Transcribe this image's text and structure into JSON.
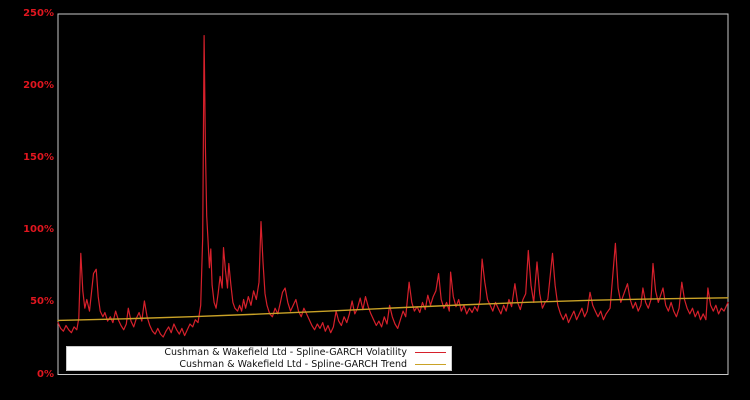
{
  "colors": {
    "background": "#000000",
    "axis_spine": "#c8c8c8",
    "tick_label": "#e0161f",
    "volatility_line": "#d6202b",
    "trend_line": "#c9a227",
    "legend_background": "#ffffff",
    "legend_border": "#c9c9c9",
    "legend_text": "#111111"
  },
  "legend": {
    "items": [
      {
        "label": "Cushman & Wakefield Ltd - Spline-GARCH Volatility",
        "color": "#d6202b"
      },
      {
        "label": "Cushman & Wakefield Ltd - Spline-GARCH Trend",
        "color": "#c9a227"
      }
    ]
  },
  "chart_data": {
    "type": "line",
    "title": "",
    "xlabel": "",
    "ylabel": "",
    "ylim": [
      0,
      250
    ],
    "grid": false,
    "legend_position": "bottom-center",
    "x_units": "percent-of-axis (no x tick labels shown)",
    "y_ticks": [
      {
        "label": "0%",
        "value": 0
      },
      {
        "label": "50%",
        "value": 50
      },
      {
        "label": "100%",
        "value": 100
      },
      {
        "label": "150%",
        "value": 150
      },
      {
        "label": "200%",
        "value": 200
      },
      {
        "label": "250%",
        "value": 250
      }
    ],
    "series": [
      {
        "name": "Cushman & Wakefield Ltd - Spline-GARCH Volatility",
        "color": "#d6202b",
        "width": 1.2,
        "points": [
          [
            0,
            36
          ],
          [
            0.4,
            32
          ],
          [
            0.8,
            30
          ],
          [
            1.2,
            34
          ],
          [
            1.6,
            31
          ],
          [
            2,
            29
          ],
          [
            2.4,
            33
          ],
          [
            2.8,
            31
          ],
          [
            3.1,
            39
          ],
          [
            3.4,
            84
          ],
          [
            3.7,
            58
          ],
          [
            4,
            46
          ],
          [
            4.3,
            52
          ],
          [
            4.7,
            44
          ],
          [
            5,
            57
          ],
          [
            5.3,
            70
          ],
          [
            5.7,
            73
          ],
          [
            6,
            54
          ],
          [
            6.3,
            44
          ],
          [
            6.7,
            40
          ],
          [
            7,
            43
          ],
          [
            7.4,
            37
          ],
          [
            7.8,
            40
          ],
          [
            8.2,
            36
          ],
          [
            8.6,
            44
          ],
          [
            9,
            38
          ],
          [
            9.4,
            34
          ],
          [
            9.8,
            31
          ],
          [
            10.2,
            35
          ],
          [
            10.5,
            46
          ],
          [
            10.9,
            37
          ],
          [
            11.3,
            33
          ],
          [
            11.7,
            39
          ],
          [
            12.1,
            43
          ],
          [
            12.5,
            37
          ],
          [
            12.9,
            51
          ],
          [
            13.3,
            40
          ],
          [
            13.7,
            34
          ],
          [
            14.1,
            30
          ],
          [
            14.5,
            28
          ],
          [
            14.9,
            32
          ],
          [
            15.3,
            28
          ],
          [
            15.7,
            26
          ],
          [
            16.1,
            30
          ],
          [
            16.5,
            33
          ],
          [
            16.9,
            29
          ],
          [
            17.3,
            35
          ],
          [
            17.7,
            31
          ],
          [
            18.1,
            28
          ],
          [
            18.5,
            32
          ],
          [
            18.9,
            27
          ],
          [
            19.3,
            31
          ],
          [
            19.7,
            35
          ],
          [
            20.1,
            33
          ],
          [
            20.5,
            38
          ],
          [
            20.9,
            36
          ],
          [
            21.3,
            48
          ],
          [
            21.6,
            95
          ],
          [
            21.8,
            235
          ],
          [
            22,
            158
          ],
          [
            22.2,
            110
          ],
          [
            22.4,
            92
          ],
          [
            22.6,
            74
          ],
          [
            22.8,
            87
          ],
          [
            23,
            62
          ],
          [
            23.3,
            50
          ],
          [
            23.6,
            46
          ],
          [
            23.9,
            56
          ],
          [
            24.2,
            68
          ],
          [
            24.5,
            60
          ],
          [
            24.7,
            88
          ],
          [
            25,
            72
          ],
          [
            25.3,
            60
          ],
          [
            25.5,
            77
          ],
          [
            25.8,
            62
          ],
          [
            26.1,
            50
          ],
          [
            26.4,
            46
          ],
          [
            26.8,
            44
          ],
          [
            27.1,
            48
          ],
          [
            27.4,
            44
          ],
          [
            27.7,
            52
          ],
          [
            28,
            46
          ],
          [
            28.4,
            54
          ],
          [
            28.8,
            48
          ],
          [
            29.2,
            58
          ],
          [
            29.6,
            52
          ],
          [
            30,
            64
          ],
          [
            30.3,
            106
          ],
          [
            30.6,
            78
          ],
          [
            30.9,
            56
          ],
          [
            31.2,
            48
          ],
          [
            31.6,
            42
          ],
          [
            32,
            40
          ],
          [
            32.4,
            46
          ],
          [
            32.8,
            42
          ],
          [
            33.2,
            50
          ],
          [
            33.5,
            57
          ],
          [
            33.9,
            60
          ],
          [
            34.3,
            50
          ],
          [
            34.7,
            44
          ],
          [
            35.1,
            48
          ],
          [
            35.5,
            52
          ],
          [
            35.9,
            44
          ],
          [
            36.3,
            40
          ],
          [
            36.7,
            46
          ],
          [
            37.1,
            42
          ],
          [
            37.5,
            38
          ],
          [
            37.9,
            34
          ],
          [
            38.3,
            31
          ],
          [
            38.7,
            35
          ],
          [
            39.1,
            32
          ],
          [
            39.5,
            36
          ],
          [
            39.9,
            30
          ],
          [
            40.3,
            34
          ],
          [
            40.7,
            29
          ],
          [
            41.1,
            33
          ],
          [
            41.5,
            44
          ],
          [
            41.9,
            37
          ],
          [
            42.3,
            34
          ],
          [
            42.7,
            40
          ],
          [
            43.1,
            36
          ],
          [
            43.5,
            42
          ],
          [
            43.9,
            51
          ],
          [
            44.3,
            42
          ],
          [
            44.7,
            46
          ],
          [
            45.1,
            53
          ],
          [
            45.5,
            45
          ],
          [
            45.9,
            54
          ],
          [
            46.3,
            47
          ],
          [
            46.7,
            42
          ],
          [
            47.1,
            38
          ],
          [
            47.5,
            34
          ],
          [
            47.9,
            37
          ],
          [
            48.3,
            33
          ],
          [
            48.7,
            40
          ],
          [
            49.1,
            35
          ],
          [
            49.5,
            48
          ],
          [
            49.9,
            40
          ],
          [
            50.3,
            35
          ],
          [
            50.7,
            32
          ],
          [
            51.1,
            38
          ],
          [
            51.5,
            44
          ],
          [
            51.9,
            40
          ],
          [
            52.4,
            64
          ],
          [
            52.8,
            50
          ],
          [
            53.2,
            44
          ],
          [
            53.6,
            47
          ],
          [
            54,
            43
          ],
          [
            54.4,
            50
          ],
          [
            54.8,
            45
          ],
          [
            55.2,
            55
          ],
          [
            55.6,
            48
          ],
          [
            56,
            54
          ],
          [
            56.4,
            58
          ],
          [
            56.8,
            70
          ],
          [
            57.2,
            52
          ],
          [
            57.6,
            46
          ],
          [
            58,
            50
          ],
          [
            58.4,
            44
          ],
          [
            58.6,
            71
          ],
          [
            59,
            54
          ],
          [
            59.4,
            47
          ],
          [
            59.8,
            52
          ],
          [
            60.2,
            44
          ],
          [
            60.6,
            48
          ],
          [
            61,
            42
          ],
          [
            61.4,
            46
          ],
          [
            61.8,
            43
          ],
          [
            62.2,
            47
          ],
          [
            62.6,
            44
          ],
          [
            63,
            52
          ],
          [
            63.3,
            80
          ],
          [
            63.7,
            64
          ],
          [
            64.1,
            52
          ],
          [
            64.5,
            48
          ],
          [
            64.9,
            44
          ],
          [
            65.3,
            50
          ],
          [
            65.7,
            46
          ],
          [
            66.1,
            42
          ],
          [
            66.5,
            48
          ],
          [
            66.9,
            44
          ],
          [
            67.3,
            52
          ],
          [
            67.7,
            47
          ],
          [
            68.2,
            63
          ],
          [
            68.6,
            50
          ],
          [
            69,
            45
          ],
          [
            69.4,
            52
          ],
          [
            69.8,
            56
          ],
          [
            70.2,
            86
          ],
          [
            70.6,
            62
          ],
          [
            71,
            50
          ],
          [
            71.5,
            78
          ],
          [
            71.9,
            56
          ],
          [
            72.3,
            46
          ],
          [
            72.7,
            50
          ],
          [
            73.1,
            52
          ],
          [
            73.8,
            84
          ],
          [
            74.2,
            62
          ],
          [
            74.6,
            48
          ],
          [
            75,
            42
          ],
          [
            75.4,
            38
          ],
          [
            75.8,
            42
          ],
          [
            76.2,
            36
          ],
          [
            76.6,
            40
          ],
          [
            77,
            44
          ],
          [
            77.4,
            38
          ],
          [
            77.8,
            42
          ],
          [
            78.2,
            46
          ],
          [
            78.6,
            40
          ],
          [
            79,
            44
          ],
          [
            79.4,
            57
          ],
          [
            79.8,
            48
          ],
          [
            80.2,
            44
          ],
          [
            80.6,
            40
          ],
          [
            81,
            44
          ],
          [
            81.4,
            38
          ],
          [
            81.8,
            42
          ],
          [
            82.4,
            46
          ],
          [
            83.2,
            91
          ],
          [
            83.6,
            60
          ],
          [
            84,
            50
          ],
          [
            85,
            63
          ],
          [
            85.4,
            52
          ],
          [
            85.8,
            46
          ],
          [
            86.2,
            50
          ],
          [
            86.6,
            44
          ],
          [
            87,
            48
          ],
          [
            87.3,
            60
          ],
          [
            87.7,
            50
          ],
          [
            88.1,
            46
          ],
          [
            88.5,
            52
          ],
          [
            88.8,
            77
          ],
          [
            89.2,
            58
          ],
          [
            89.6,
            50
          ],
          [
            90.3,
            60
          ],
          [
            90.7,
            48
          ],
          [
            91.1,
            44
          ],
          [
            91.5,
            50
          ],
          [
            91.9,
            44
          ],
          [
            92.3,
            40
          ],
          [
            92.7,
            46
          ],
          [
            93.1,
            64
          ],
          [
            93.5,
            52
          ],
          [
            93.9,
            46
          ],
          [
            94.3,
            42
          ],
          [
            94.7,
            46
          ],
          [
            95.1,
            40
          ],
          [
            95.5,
            44
          ],
          [
            95.9,
            38
          ],
          [
            96.3,
            42
          ],
          [
            96.7,
            38
          ],
          [
            97,
            60
          ],
          [
            97.4,
            48
          ],
          [
            97.8,
            44
          ],
          [
            98.2,
            48
          ],
          [
            98.6,
            42
          ],
          [
            99,
            46
          ],
          [
            99.4,
            44
          ],
          [
            100,
            50
          ]
        ]
      },
      {
        "name": "Cushman & Wakefield Ltd - Spline-GARCH Trend",
        "color": "#c9a227",
        "width": 1.4,
        "points": [
          [
            0,
            37.5
          ],
          [
            10,
            38.6
          ],
          [
            20,
            40.1
          ],
          [
            30,
            41.9
          ],
          [
            40,
            43.9
          ],
          [
            50,
            46.1
          ],
          [
            60,
            48.2
          ],
          [
            70,
            50.1
          ],
          [
            80,
            51.5
          ],
          [
            90,
            52.5
          ],
          [
            100,
            53.2
          ]
        ]
      }
    ]
  }
}
